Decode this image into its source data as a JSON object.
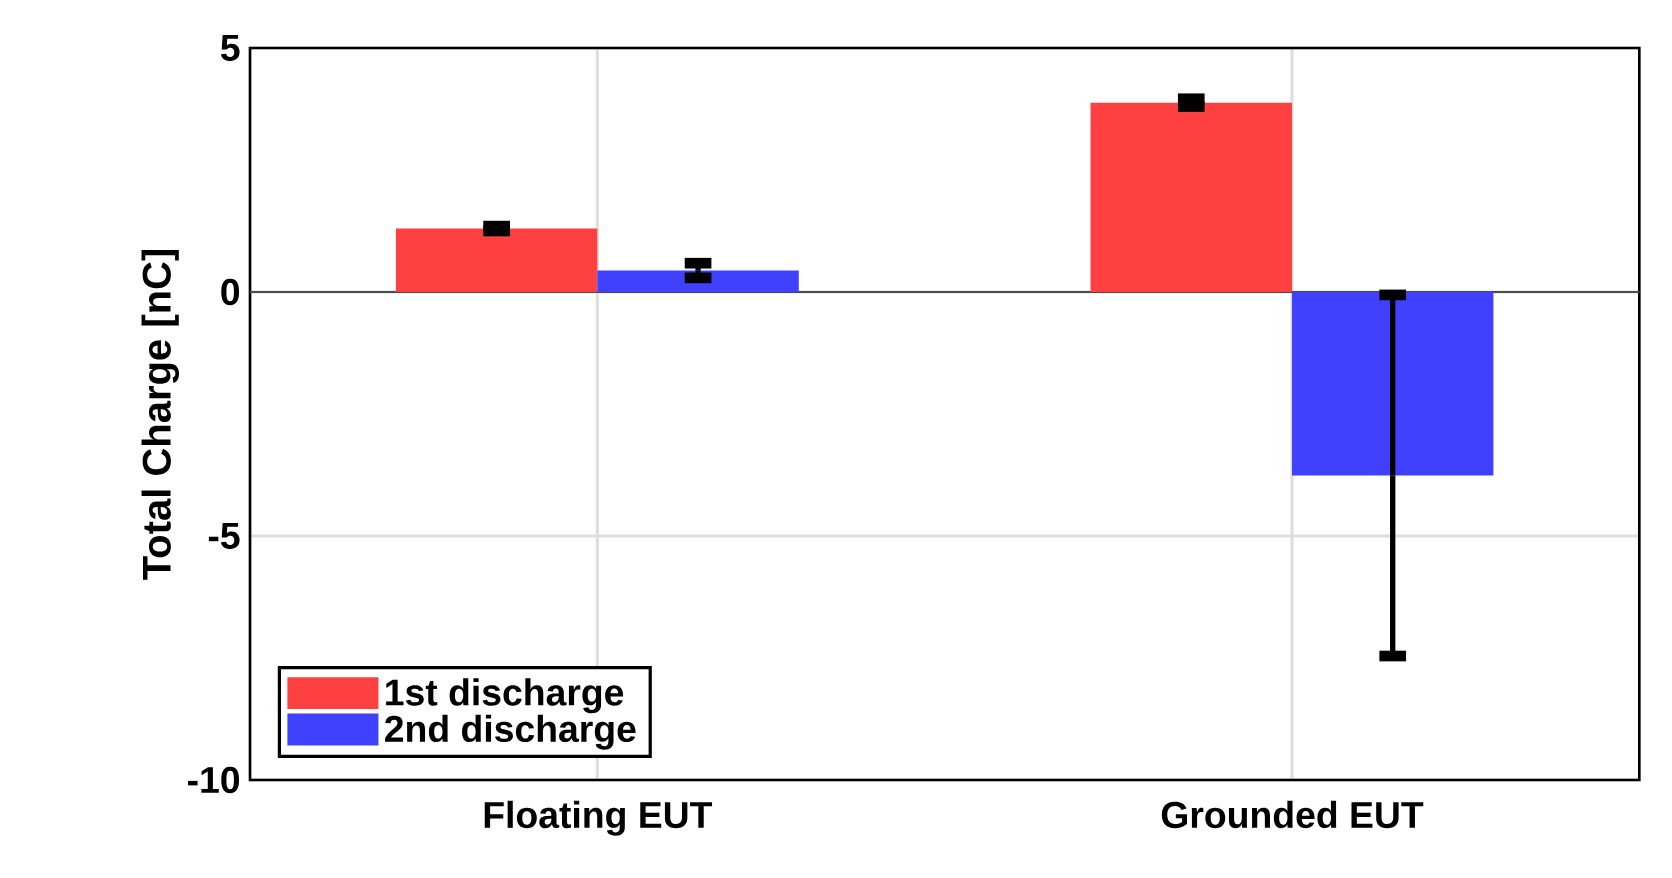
{
  "chart_data": {
    "type": "bar",
    "ylabel": "Total Charge [nC]",
    "categories": [
      "Floating EUT",
      "Grounded EUT"
    ],
    "series": [
      {
        "name": "1st discharge",
        "color": "#ff4040",
        "values": [
          1.3,
          3.88
        ],
        "errors": [
          0.05,
          0.08
        ]
      },
      {
        "name": "2nd discharge",
        "color": "#4040ff",
        "values": [
          0.44,
          -3.76
        ],
        "errors": [
          0.15,
          3.7
        ]
      }
    ],
    "ylim": [
      -10,
      5
    ],
    "yticks": [
      -10,
      -5,
      0,
      5
    ],
    "grid": true,
    "legend": "bottom left"
  }
}
